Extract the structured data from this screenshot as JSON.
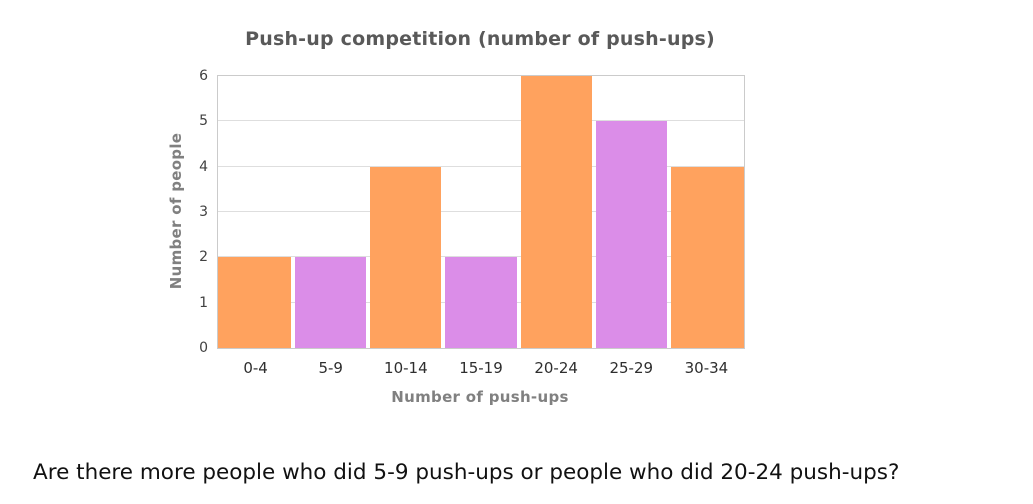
{
  "page": {
    "question": "Are there more people who did 5-9 push-ups or people who did 20-24 push-ups?"
  },
  "chart_data": {
    "type": "bar",
    "title": "Push-up competition (number of push-ups)",
    "categories": [
      "0-4",
      "5-9",
      "10-14",
      "15-19",
      "20-24",
      "25-29",
      "30-34"
    ],
    "values": [
      2,
      2,
      4,
      2,
      6,
      5,
      4
    ],
    "bar_colors": [
      "#ffa25e",
      "#db8de8",
      "#ffa25e",
      "#db8de8",
      "#ffa25e",
      "#db8de8",
      "#ffa25e"
    ],
    "xlabel": "Number of push-ups",
    "ylabel": "Number of people",
    "ylim": [
      0,
      6
    ],
    "yticks": [
      0,
      1,
      2,
      3,
      4,
      5,
      6
    ],
    "grid": true,
    "legend": "none",
    "colors": {
      "orange_bar": "#ffa25e",
      "purple_bar": "#db8de8",
      "gridline": "#dedede",
      "plot_border": "#cbcbcb",
      "title_text": "#595959",
      "axis_title_text": "#808080",
      "tick_text": "#414141"
    }
  }
}
